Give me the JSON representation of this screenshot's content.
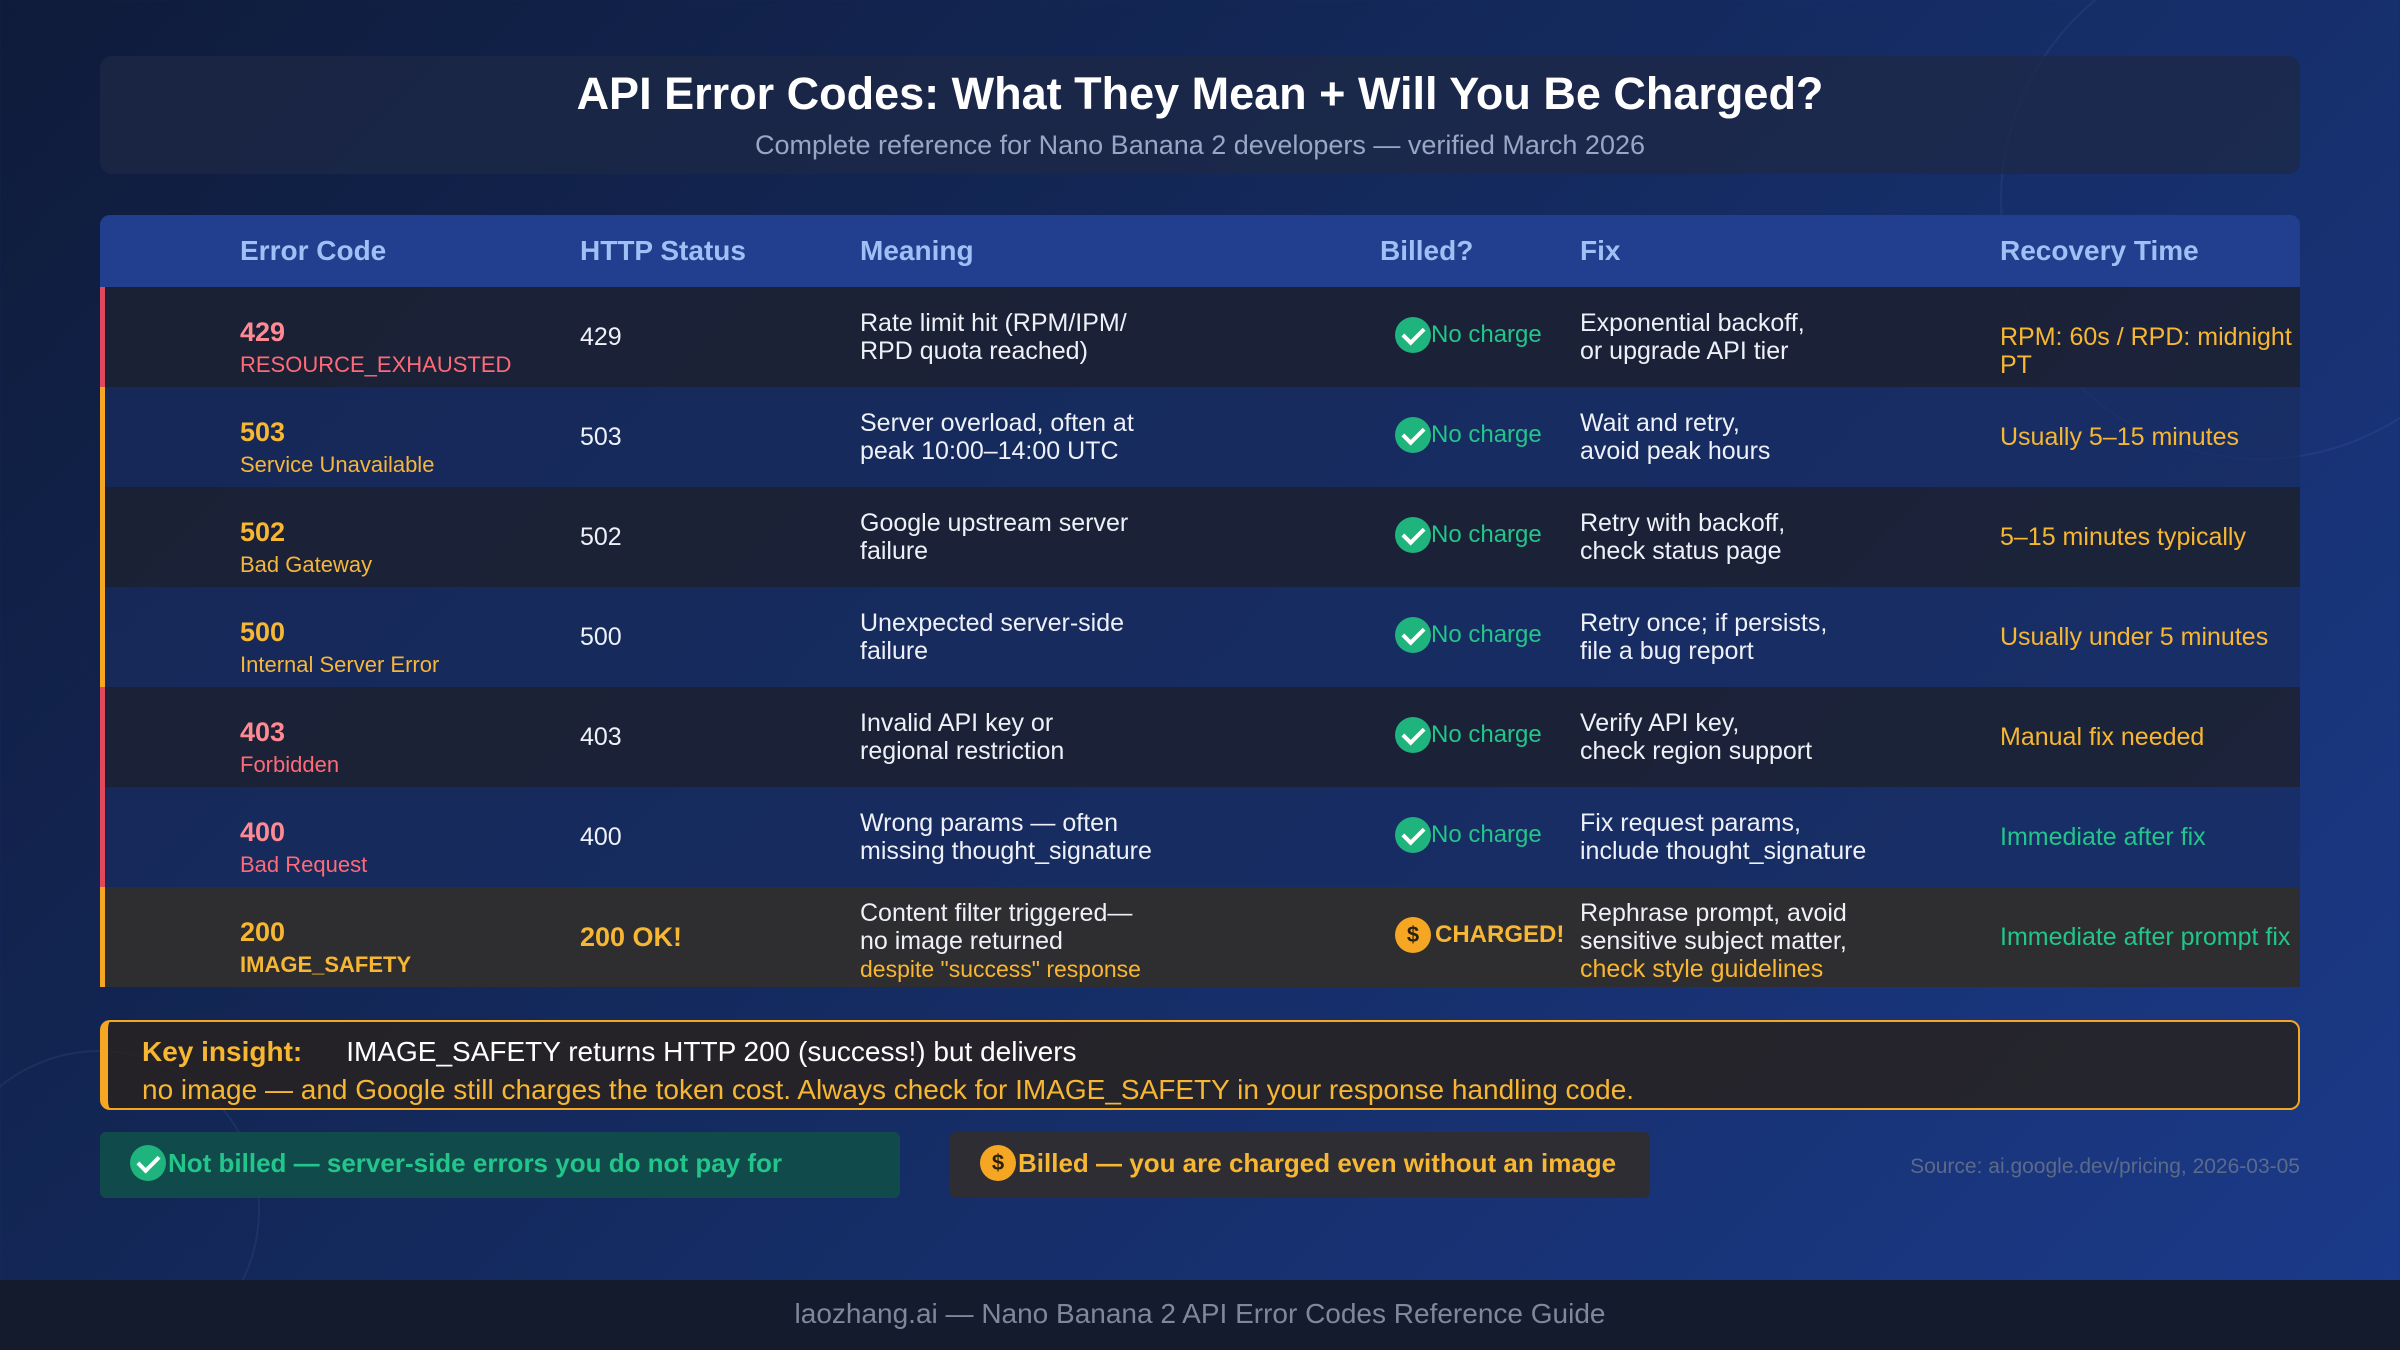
{
  "header": {
    "title": "API Error Codes: What They Mean + Will You Be Charged?",
    "subtitle": "Complete reference for Nano Banana 2 developers — verified March 2026"
  },
  "columns": {
    "code": "Error Code",
    "status": "HTTP Status",
    "meaning": "Meaning",
    "billed": "Billed?",
    "fix": "Fix",
    "recovery": "Recovery Time"
  },
  "rows": [
    {
      "code": "429",
      "name": "RESOURCE_EXHAUSTED",
      "status": "429",
      "meaning1": "Rate limit hit (RPM/IPM/",
      "meaning2": "RPD quota reached)",
      "billed": "No charge",
      "fix1": "Exponential backoff,",
      "fix2": "or upgrade API tier",
      "recovery": "RPM: 60s / RPD: midnight PT"
    },
    {
      "code": "503",
      "name": "Service Unavailable",
      "status": "503",
      "meaning1": "Server overload, often at",
      "meaning2": "peak 10:00–14:00 UTC",
      "billed": "No charge",
      "fix1": "Wait and retry,",
      "fix2": "avoid peak hours",
      "recovery": "Usually 5–15 minutes"
    },
    {
      "code": "502",
      "name": "Bad Gateway",
      "status": "502",
      "meaning1": "Google upstream server",
      "meaning2": "failure",
      "billed": "No charge",
      "fix1": "Retry with backoff,",
      "fix2": "check status page",
      "recovery": "5–15 minutes typically"
    },
    {
      "code": "500",
      "name": "Internal Server Error",
      "status": "500",
      "meaning1": "Unexpected server-side",
      "meaning2": "failure",
      "billed": "No charge",
      "fix1": "Retry once; if persists,",
      "fix2": "file a bug report",
      "recovery": "Usually under 5 minutes"
    },
    {
      "code": "403",
      "name": "Forbidden",
      "status": "403",
      "meaning1": "Invalid API key or",
      "meaning2": "regional restriction",
      "billed": "No charge",
      "fix1": "Verify API key,",
      "fix2": "check region support",
      "recovery": "Manual fix needed"
    },
    {
      "code": "400",
      "name": "Bad Request",
      "status": "400",
      "meaning1": "Wrong params — often",
      "meaning2": "missing thought_signature",
      "billed": "No charge",
      "fix1": "Fix request params,",
      "fix2": "include thought_signature",
      "recovery": "Immediate after fix"
    },
    {
      "code": "200",
      "name": "IMAGE_SAFETY",
      "status": "200 OK!",
      "meaning1": "Content filter triggered—",
      "meaning2": "no image returned",
      "meaning3": "despite \"success\" response",
      "billed": "CHARGED!",
      "fix1": "Rephrase prompt, avoid",
      "fix2": "sensitive subject matter,",
      "fix3": "check style guidelines",
      "recovery": "Immediate after prompt fix"
    }
  ],
  "insight": {
    "label": "Key insight:",
    "line1": "IMAGE_SAFETY returns HTTP 200 (success!) but delivers",
    "line2": "no image — and Google still charges the token cost. Always check for IMAGE_SAFETY in your response handling code."
  },
  "legend": {
    "not_billed": "Not billed — server-side errors you do not pay for",
    "billed": "Billed — you are charged even without an image",
    "coin_symbol": "$"
  },
  "source": "Source: ai.google.dev/pricing, 2026-03-05",
  "footer": "laozhang.ai — Nano Banana 2 API Error Codes Reference Guide",
  "colors": {
    "red": "#e0485c",
    "amber": "#f5a623",
    "green": "#1fb37d",
    "header_blue": "#213f8e"
  }
}
